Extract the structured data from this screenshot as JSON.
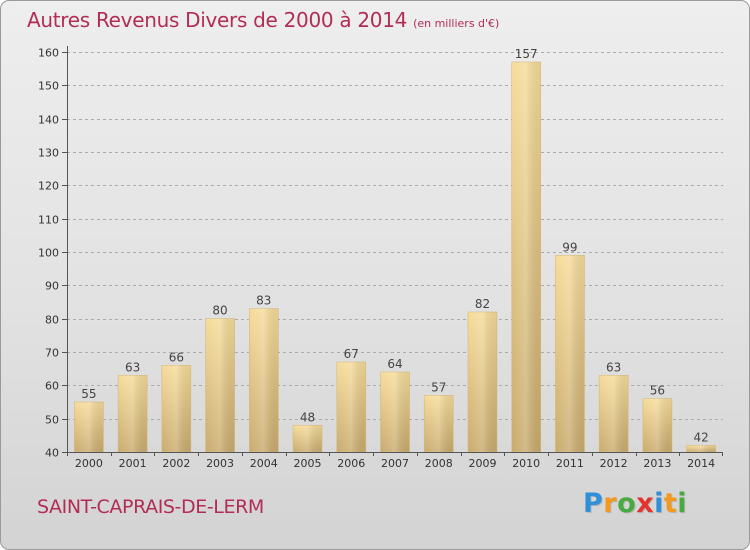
{
  "title": "Autres Revenus Divers de 2000 à 2014",
  "unit_note": "(en milliers d'€)",
  "commune": "SAINT-CAPRAIS-DE-LERM",
  "logo": {
    "text": "Proxiti",
    "letters": [
      {
        "char": "P",
        "color": "#2f8fd8"
      },
      {
        "char": "r",
        "color": "#f39a1e"
      },
      {
        "char": "o",
        "color": "#49a942"
      },
      {
        "char": "x",
        "color": "#e2342d"
      },
      {
        "char": "i",
        "color": "#2f8fd8"
      },
      {
        "char": "t",
        "color": "#f39a1e"
      },
      {
        "char": "i",
        "color": "#49a942"
      }
    ]
  },
  "colors": {
    "title": "#b22d55",
    "bar_light": "#f6dc9a",
    "bar_dark": "#c9ab6e",
    "grid": "#aaaaaa"
  },
  "chart_data": {
    "type": "bar",
    "title": "Autres Revenus Divers de 2000 à 2014",
    "subtitle": "(en milliers d'€)",
    "xlabel": "",
    "ylabel": "",
    "categories": [
      "2000",
      "2001",
      "2002",
      "2003",
      "2004",
      "2005",
      "2006",
      "2007",
      "2008",
      "2009",
      "2010",
      "2011",
      "2012",
      "2013",
      "2014"
    ],
    "values": [
      55,
      63,
      66,
      80,
      83,
      48,
      67,
      64,
      57,
      82,
      157,
      99,
      63,
      56,
      42
    ],
    "ylim": [
      40,
      160
    ],
    "yticks": [
      40,
      50,
      60,
      70,
      80,
      90,
      100,
      110,
      120,
      130,
      140,
      150,
      160
    ],
    "grid": "horizontal dashed",
    "data_labels": true
  }
}
